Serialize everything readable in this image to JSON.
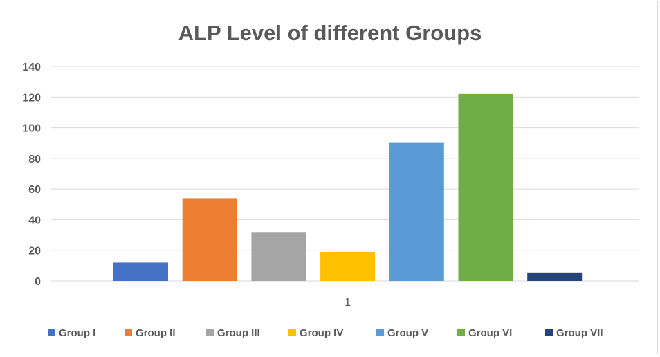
{
  "chart_data": {
    "type": "bar",
    "title": "ALP Level of different Groups",
    "categories": [
      "1"
    ],
    "series": [
      {
        "name": "Group I",
        "values": [
          12
        ],
        "color": "#4472C4"
      },
      {
        "name": "Group II",
        "values": [
          54
        ],
        "color": "#ED7D31"
      },
      {
        "name": "Group III",
        "values": [
          31.5
        ],
        "color": "#A5A5A5"
      },
      {
        "name": "Group IV",
        "values": [
          19
        ],
        "color": "#FFC000"
      },
      {
        "name": "Group V",
        "values": [
          90.5
        ],
        "color": "#5B9BD5"
      },
      {
        "name": "Group VI",
        "values": [
          122
        ],
        "color": "#70AD47"
      },
      {
        "name": "Group VII",
        "values": [
          5.5
        ],
        "color": "#264478"
      }
    ],
    "xlabel": "",
    "ylabel": "",
    "ylim": [
      0,
      140
    ],
    "yticks": [
      "0",
      "20",
      "40",
      "60",
      "80",
      "100",
      "120",
      "140"
    ],
    "grid": true,
    "legend": "bottom"
  }
}
